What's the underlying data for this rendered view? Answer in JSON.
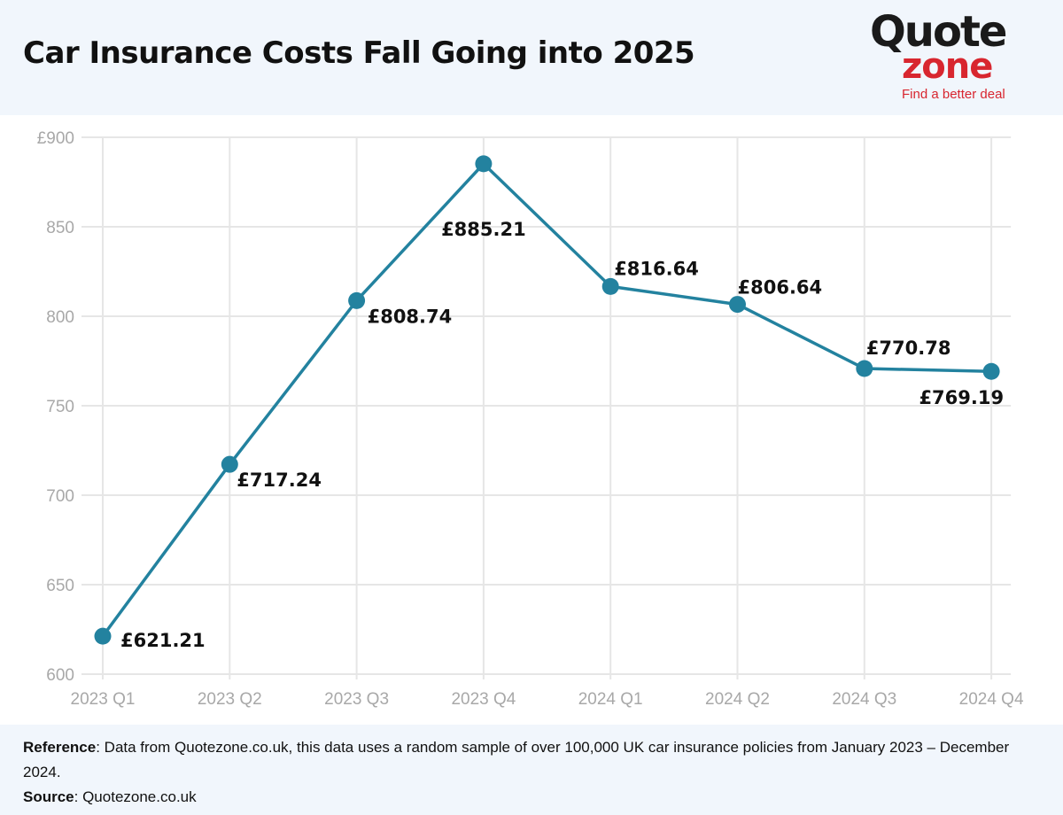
{
  "header": {
    "title": "Car Insurance Costs Fall Going into 2025",
    "logo": {
      "top": "Quote",
      "bottom": "zone",
      "tagline": "Find a better deal",
      "color_dark": "#1a1a1a",
      "color_red": "#d8262f"
    }
  },
  "chart_data": {
    "type": "line",
    "title": "Car Insurance Costs Fall Going into 2025",
    "xlabel": "",
    "ylabel": "",
    "categories": [
      "2023 Q1",
      "2023 Q2",
      "2023 Q3",
      "2023 Q4",
      "2024 Q1",
      "2024 Q2",
      "2024 Q3",
      "2024 Q4"
    ],
    "series": [
      {
        "values": [
          621.21,
          717.24,
          808.74,
          885.21,
          816.64,
          806.64,
          770.78,
          769.19
        ],
        "labels": [
          "£621.21",
          "£717.24",
          "£808.74",
          "£885.21",
          "£816.64",
          "£806.64",
          "£770.78",
          "£769.19"
        ],
        "color": "#23829f"
      }
    ],
    "ylim": [
      600,
      900
    ],
    "yticks": [
      600,
      650,
      700,
      750,
      800,
      850,
      900
    ],
    "ytick_labels": [
      "600",
      "650",
      "700",
      "750",
      "800",
      "850",
      "£900"
    ],
    "grid": true,
    "legend": "none"
  },
  "footer": {
    "reference_label": "Reference",
    "reference_text": ": Data from Quotezone.co.uk, this data uses a random sample of over 100,000 UK car insurance policies from January 2023 – December 2024.",
    "source_label": "Source",
    "source_text": ": Quotezone.co.uk"
  }
}
